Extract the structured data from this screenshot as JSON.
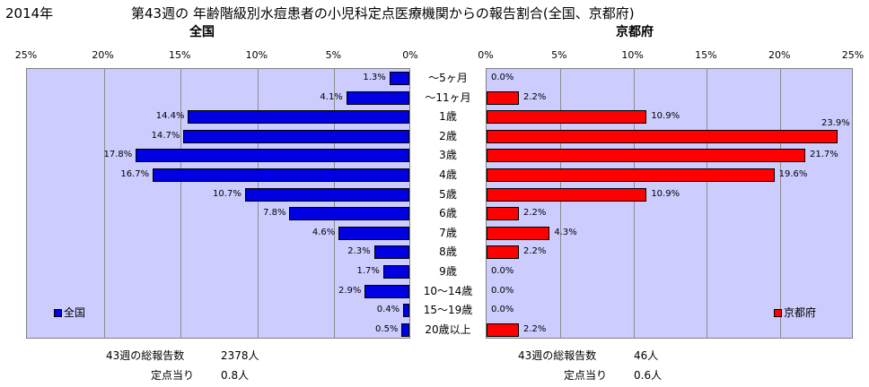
{
  "year_label": "2014年",
  "title": "第43週の 年齢階級別水痘患者の小児科定点医療機関からの報告割合(全国、京都府)",
  "colors": {
    "national": "#0000e0",
    "kyoto": "#ff0000",
    "plot_bg": "#ccccff"
  },
  "chart_data": [
    {
      "type": "bar",
      "orientation": "horizontal-reversed",
      "title": "全国",
      "legend": "全国",
      "legend_position": "bottom-left",
      "xlim": [
        0,
        25
      ],
      "ticks": [
        "25%",
        "20%",
        "15%",
        "10%",
        "5%",
        "0%"
      ],
      "categories": [
        "～5ヶ月",
        "～11ヶ月",
        "1歳",
        "2歳",
        "3歳",
        "4歳",
        "5歳",
        "6歳",
        "7歳",
        "8歳",
        "9歳",
        "10～14歳",
        "15～19歳",
        "20歳以上"
      ],
      "values": [
        1.3,
        4.1,
        14.4,
        14.7,
        17.8,
        16.7,
        10.7,
        7.8,
        4.6,
        2.3,
        1.7,
        2.9,
        0.4,
        0.5
      ],
      "labels": [
        "1.3%",
        "4.1%",
        "14.4%",
        "14.7%",
        "17.8%",
        "16.7%",
        "10.7%",
        "7.8%",
        "4.6%",
        "2.3%",
        "1.7%",
        "2.9%",
        "0.4%",
        "0.5%"
      ]
    },
    {
      "type": "bar",
      "orientation": "horizontal",
      "title": "京都府",
      "legend": "京都府",
      "legend_position": "bottom-right",
      "xlim": [
        0,
        25
      ],
      "ticks": [
        "0%",
        "5%",
        "10%",
        "15%",
        "20%",
        "25%"
      ],
      "categories": [
        "～5ヶ月",
        "～11ヶ月",
        "1歳",
        "2歳",
        "3歳",
        "4歳",
        "5歳",
        "6歳",
        "7歳",
        "8歳",
        "9歳",
        "10～14歳",
        "15～19歳",
        "20歳以上"
      ],
      "values": [
        0.0,
        2.2,
        10.9,
        23.9,
        21.7,
        19.6,
        10.9,
        2.2,
        4.3,
        2.2,
        0.0,
        0.0,
        0.0,
        2.2
      ],
      "labels": [
        "0.0%",
        "2.2%",
        "10.9%",
        "23.9%",
        "21.7%",
        "19.6%",
        "10.9%",
        "2.2%",
        "4.3%",
        "2.2%",
        "0.0%",
        "0.0%",
        "0.0%",
        "2.2%"
      ]
    }
  ],
  "footer": {
    "national_total_label": "43週の総報告数",
    "national_total_value": "2378人",
    "national_per_label": "定点当り",
    "national_per_value": "0.8人",
    "kyoto_total_label": "43週の総報告数",
    "kyoto_total_value": "46人",
    "kyoto_per_label": "定点当り",
    "kyoto_per_value": "0.6人"
  }
}
